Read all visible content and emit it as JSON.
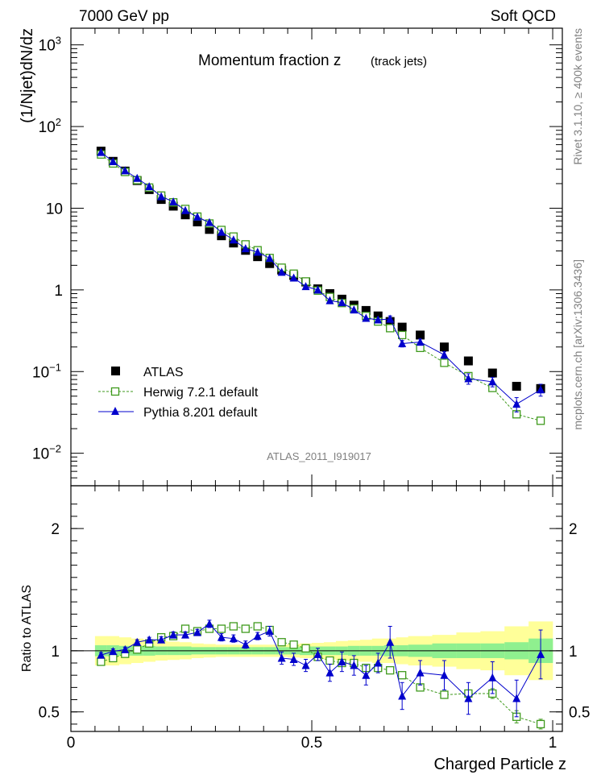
{
  "header": {
    "energy_label": "7000 GeV pp",
    "process_label": "Soft QCD",
    "plot_title": "Momentum fraction z",
    "plot_title_suffix": "(track jets)",
    "side_label_top": "Rivet 3.1.10, ≥ 400k events",
    "side_label_bottom": "mcplots.cern.ch [arXiv:1306.3436]",
    "analysis_id": "ATLAS_2011_I919017"
  },
  "colors": {
    "atlas": "#000000",
    "herwig": "#3f9a1d",
    "pythia": "#0000cc",
    "band_inner": "#8ff08f",
    "band_outer": "#ffff99"
  },
  "chart_data": [
    {
      "type": "scatter",
      "panel": "main",
      "xlabel": "",
      "ylabel": "(1/Njet)dN/dz",
      "yscale": "log",
      "xlim": [
        0,
        1.02
      ],
      "ylim": [
        0.004,
        1600
      ],
      "yticks": [
        {
          "value": 1000,
          "label": "10",
          "sup": "3"
        },
        {
          "value": 100,
          "label": "10",
          "sup": "2"
        },
        {
          "value": 10,
          "label": "10",
          "sup": ""
        },
        {
          "value": 1,
          "label": "1",
          "sup": ""
        },
        {
          "value": 0.1,
          "label": "10",
          "sup": "−1"
        },
        {
          "value": 0.01,
          "label": "10",
          "sup": "−2"
        }
      ],
      "legend": [
        {
          "label": "ATLAS",
          "series": "atlas"
        },
        {
          "label": "Herwig 7.2.1 default",
          "series": "herwig"
        },
        {
          "label": "Pythia 8.201 default",
          "series": "pythia"
        }
      ],
      "x": [
        0.0625,
        0.0875,
        0.1125,
        0.1375,
        0.1625,
        0.1875,
        0.2125,
        0.2375,
        0.2625,
        0.2875,
        0.3125,
        0.3375,
        0.3625,
        0.3875,
        0.4125,
        0.4375,
        0.4625,
        0.4875,
        0.5125,
        0.5375,
        0.5625,
        0.5875,
        0.6125,
        0.6375,
        0.6625,
        0.6875,
        0.725,
        0.775,
        0.825,
        0.875,
        0.925,
        0.975
      ],
      "series": [
        {
          "name": "ATLAS",
          "key": "atlas",
          "values": [
            50,
            37.5,
            28.5,
            21.8,
            16.9,
            12.8,
            10.6,
            8.3,
            6.8,
            5.5,
            4.6,
            3.75,
            3.05,
            2.55,
            2.1,
            1.75,
            1.5,
            1.25,
            1.03,
            0.9,
            0.77,
            0.65,
            0.56,
            0.48,
            0.41,
            0.35,
            0.28,
            0.2,
            0.135,
            0.096,
            0.066,
            0.062
          ],
          "errors": [
            1.0,
            0.8,
            0.6,
            0.5,
            0.4,
            0.3,
            0.25,
            0.2,
            0.15,
            0.12,
            0.1,
            0.08,
            0.07,
            0.06,
            0.05,
            0.04,
            0.04,
            0.03,
            0.03,
            0.02,
            0.02,
            0.02,
            0.02,
            0.02,
            0.015,
            0.015,
            0.01,
            0.01,
            0.008,
            0.006,
            0.005,
            0.005
          ]
        },
        {
          "name": "Herwig 7.2.1 default",
          "key": "herwig",
          "values": [
            45.5,
            35.3,
            27.8,
            22.1,
            17.9,
            14.3,
            11.8,
            9.8,
            7.9,
            6.5,
            5.42,
            4.5,
            3.61,
            3.06,
            2.46,
            1.87,
            1.58,
            1.27,
            0.98,
            0.82,
            0.69,
            0.59,
            0.48,
            0.41,
            0.34,
            0.28,
            0.195,
            0.128,
            0.088,
            0.063,
            0.03,
            0.025
          ],
          "errors": [
            0.6,
            0.5,
            0.4,
            0.3,
            0.2,
            0.2,
            0.15,
            0.12,
            0.1,
            0.08,
            0.07,
            0.06,
            0.05,
            0.04,
            0.035,
            0.03,
            0.025,
            0.02,
            0.02,
            0.015,
            0.012,
            0.012,
            0.01,
            0.01,
            0.01,
            0.008,
            0.006,
            0.005,
            0.004,
            0.004,
            0.003,
            0.002
          ]
        },
        {
          "name": "Pythia 8.201 default",
          "key": "pythia",
          "values": [
            48.3,
            37.3,
            28.8,
            23.3,
            18.4,
            13.9,
            12.0,
            9.4,
            7.8,
            6.7,
            5.1,
            4.1,
            3.2,
            2.9,
            2.44,
            1.65,
            1.4,
            1.1,
            1.0,
            0.74,
            0.7,
            0.57,
            0.45,
            0.43,
            0.44,
            0.22,
            0.23,
            0.16,
            0.082,
            0.075,
            0.04,
            0.06
          ],
          "errors": [
            1.0,
            0.8,
            0.6,
            0.5,
            0.4,
            0.3,
            0.25,
            0.2,
            0.15,
            0.12,
            0.1,
            0.08,
            0.07,
            0.06,
            0.06,
            0.05,
            0.05,
            0.04,
            0.04,
            0.04,
            0.04,
            0.04,
            0.03,
            0.03,
            0.04,
            0.02,
            0.02,
            0.015,
            0.012,
            0.01,
            0.008,
            0.01
          ]
        }
      ]
    },
    {
      "type": "scatter",
      "panel": "ratio",
      "xlabel": "Charged Particle z",
      "ylabel": "Ratio to ATLAS",
      "xlim": [
        0,
        1.02
      ],
      "ylim": [
        0.34,
        2.35
      ],
      "yticks": [
        0.5,
        1,
        2
      ],
      "ytick_labels": [
        "0.5",
        "1",
        "2"
      ],
      "xticks": [
        0,
        0.5,
        1
      ],
      "xtick_labels": [
        "0",
        "0.5",
        "1"
      ],
      "reference_line": 1,
      "band_edges": [
        0.05,
        0.075,
        0.1,
        0.125,
        0.15,
        0.175,
        0.2,
        0.225,
        0.25,
        0.275,
        0.3,
        0.325,
        0.35,
        0.375,
        0.4,
        0.425,
        0.45,
        0.475,
        0.5,
        0.525,
        0.55,
        0.575,
        0.6,
        0.625,
        0.65,
        0.675,
        0.7,
        0.75,
        0.8,
        0.85,
        0.9,
        0.95,
        1.0
      ],
      "band_inner_halfwidth": [
        0.045,
        0.045,
        0.04,
        0.04,
        0.04,
        0.035,
        0.035,
        0.035,
        0.03,
        0.03,
        0.03,
        0.03,
        0.03,
        0.03,
        0.03,
        0.03,
        0.03,
        0.035,
        0.035,
        0.035,
        0.035,
        0.04,
        0.04,
        0.04,
        0.045,
        0.045,
        0.05,
        0.06,
        0.06,
        0.06,
        0.07,
        0.1
      ],
      "band_outer_halfwidth": [
        0.12,
        0.12,
        0.11,
        0.1,
        0.09,
        0.08,
        0.075,
        0.07,
        0.06,
        0.055,
        0.05,
        0.05,
        0.05,
        0.05,
        0.05,
        0.05,
        0.055,
        0.06,
        0.065,
        0.07,
        0.08,
        0.085,
        0.09,
        0.1,
        0.1,
        0.11,
        0.12,
        0.13,
        0.15,
        0.16,
        0.2,
        0.24
      ],
      "x": [
        0.0625,
        0.0875,
        0.1125,
        0.1375,
        0.1625,
        0.1875,
        0.2125,
        0.2375,
        0.2625,
        0.2875,
        0.3125,
        0.3375,
        0.3625,
        0.3875,
        0.4125,
        0.4375,
        0.4625,
        0.4875,
        0.5125,
        0.5375,
        0.5625,
        0.5875,
        0.6125,
        0.6375,
        0.6625,
        0.6875,
        0.725,
        0.775,
        0.825,
        0.875,
        0.925,
        0.975
      ],
      "series": [
        {
          "name": "Herwig 7.2.1 default",
          "key": "herwig",
          "values": [
            0.91,
            0.94,
            0.975,
            1.01,
            1.06,
            1.11,
            1.12,
            1.18,
            1.16,
            1.18,
            1.18,
            1.2,
            1.18,
            1.2,
            1.17,
            1.07,
            1.05,
            1.02,
            0.95,
            0.92,
            0.9,
            0.9,
            0.86,
            0.86,
            0.84,
            0.8,
            0.7,
            0.64,
            0.65,
            0.65,
            0.46,
            0.4
          ],
          "errors": [
            0.01,
            0.01,
            0.01,
            0.01,
            0.01,
            0.01,
            0.01,
            0.01,
            0.01,
            0.01,
            0.01,
            0.01,
            0.01,
            0.01,
            0.01,
            0.015,
            0.015,
            0.015,
            0.015,
            0.02,
            0.02,
            0.02,
            0.02,
            0.02,
            0.02,
            0.025,
            0.025,
            0.03,
            0.03,
            0.04,
            0.05,
            0.04
          ]
        },
        {
          "name": "Pythia 8.201 default",
          "key": "pythia",
          "values": [
            0.965,
            0.995,
            1.01,
            1.07,
            1.09,
            1.09,
            1.13,
            1.13,
            1.15,
            1.22,
            1.11,
            1.1,
            1.05,
            1.12,
            1.16,
            0.94,
            0.93,
            0.88,
            0.97,
            0.82,
            0.91,
            0.88,
            0.8,
            0.9,
            1.07,
            0.63,
            0.82,
            0.8,
            0.61,
            0.78,
            0.61,
            0.97
          ],
          "errors": [
            0.02,
            0.02,
            0.02,
            0.02,
            0.02,
            0.025,
            0.025,
            0.025,
            0.025,
            0.03,
            0.03,
            0.03,
            0.03,
            0.03,
            0.04,
            0.05,
            0.05,
            0.05,
            0.05,
            0.07,
            0.08,
            0.08,
            0.08,
            0.08,
            0.13,
            0.11,
            0.1,
            0.12,
            0.13,
            0.13,
            0.15,
            0.2
          ]
        }
      ]
    }
  ]
}
